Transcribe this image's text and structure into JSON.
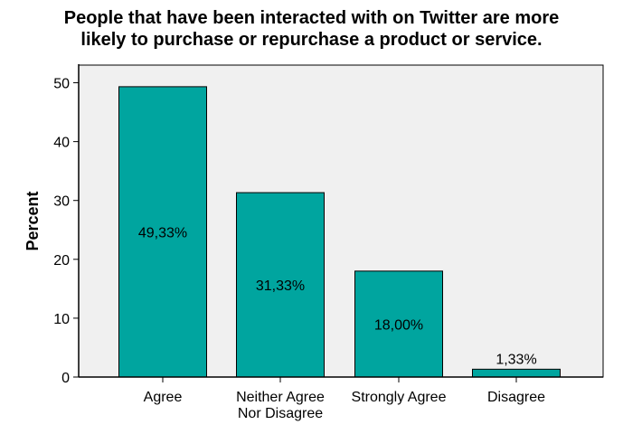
{
  "chart_data": {
    "type": "bar",
    "title_lines": [
      "People that have been interacted with on Twitter are more",
      "likely to purchase or repurchase a product or service."
    ],
    "xlabel": "",
    "ylabel": "Percent",
    "ylim": [
      0,
      53
    ],
    "yticks": [
      0,
      10,
      20,
      30,
      40,
      50
    ],
    "grid": false,
    "categories": [
      [
        "Agree"
      ],
      [
        "Neither Agree",
        "Nor Disagree"
      ],
      [
        "Strongly Agree"
      ],
      [
        "Disagree"
      ]
    ],
    "values": [
      49.33,
      31.33,
      18.0,
      1.33
    ],
    "data_labels": [
      "49,33%",
      "31,33%",
      "18,00%",
      "1,33%"
    ],
    "colors": {
      "bar": "#00a59f",
      "plot_background": "#f0f0f0",
      "axis": "#000000"
    }
  }
}
